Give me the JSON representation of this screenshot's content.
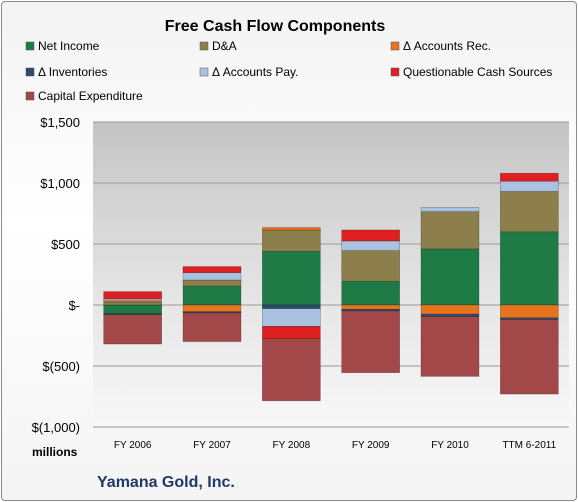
{
  "chart_data": {
    "type": "bar",
    "stacked": true,
    "title": "Free Cash Flow Components",
    "unit_label": "millions",
    "footer": "Yamana Gold, Inc.",
    "categories": [
      "FY 2006",
      "FY 2007",
      "FY 2008",
      "FY 2009",
      "FY 2010",
      "TTM 6-2011"
    ],
    "ylim": [
      -1000,
      1500
    ],
    "yticks": [
      1500,
      1000,
      500,
      0,
      -500,
      -1000
    ],
    "ytick_labels": [
      "$1,500",
      "$1,000",
      "$500",
      "$-",
      "$(500)",
      "$(1,000)"
    ],
    "grid": true,
    "legend_position": "top",
    "series": [
      {
        "name": "Net Income",
        "color": "#1e7b45",
        "values": [
          -70,
          155,
          440,
          195,
          460,
          600
        ]
      },
      {
        "name": "D&A",
        "color": "#8c7f4c",
        "values": [
          25,
          50,
          175,
          250,
          305,
          330
        ]
      },
      {
        "name": "Δ Accounts Rec.",
        "color": "#e8731f",
        "values": [
          10,
          -55,
          20,
          -35,
          -75,
          -105
        ]
      },
      {
        "name": "Δ Inventories",
        "color": "#2c4a6b",
        "values": [
          -10,
          -10,
          -30,
          -15,
          -20,
          -15
        ]
      },
      {
        "name": "Δ Accounts Pay.",
        "color": "#a9c2e0",
        "values": [
          15,
          60,
          -145,
          80,
          35,
          85
        ]
      },
      {
        "name": "Questionable Cash Sources",
        "color": "#e02020",
        "values": [
          60,
          50,
          -100,
          90,
          0,
          65
        ]
      },
      {
        "name": "Capital Expenditure",
        "color": "#a34848",
        "values": [
          -240,
          -235,
          -510,
          -505,
          -490,
          -610
        ]
      }
    ]
  }
}
